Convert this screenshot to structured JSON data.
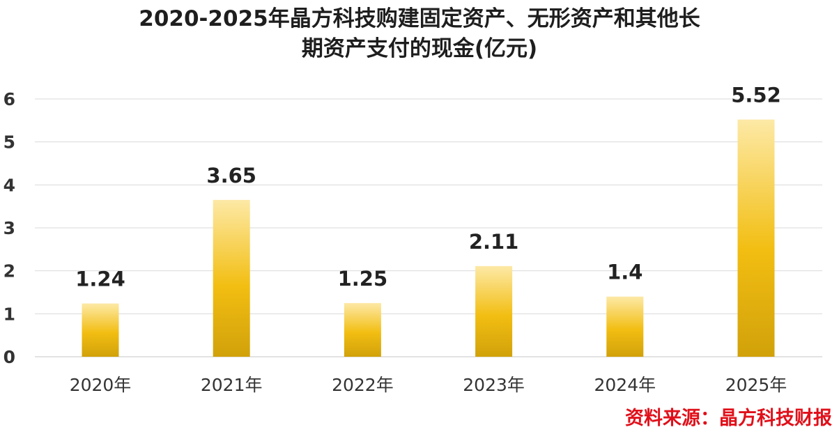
{
  "chart_data": {
    "type": "bar",
    "title_line1": "2020-2025年晶方科技购建固定资产、无形资产和其他长",
    "title_line2": "期资产支付的现金(亿元)",
    "categories": [
      "2020年",
      "2021年",
      "2022年",
      "2023年",
      "2024年",
      "2025年"
    ],
    "values": [
      1.24,
      3.65,
      1.25,
      2.11,
      1.4,
      5.52
    ],
    "data_labels": [
      "1.24",
      "3.65",
      "1.25",
      "2.11",
      "1.4",
      "5.52"
    ],
    "ylim": [
      0,
      6
    ],
    "yticks": [
      "0",
      "1",
      "2",
      "3",
      "4",
      "5",
      "6"
    ],
    "grid": true,
    "bar_color_top": "#fde9a6",
    "bar_color_mid": "#f2be12",
    "bar_color_bottom": "#d1a10a",
    "grid_color": "#d9d9d9"
  },
  "source_note": "资料来源：晶方科技财报"
}
